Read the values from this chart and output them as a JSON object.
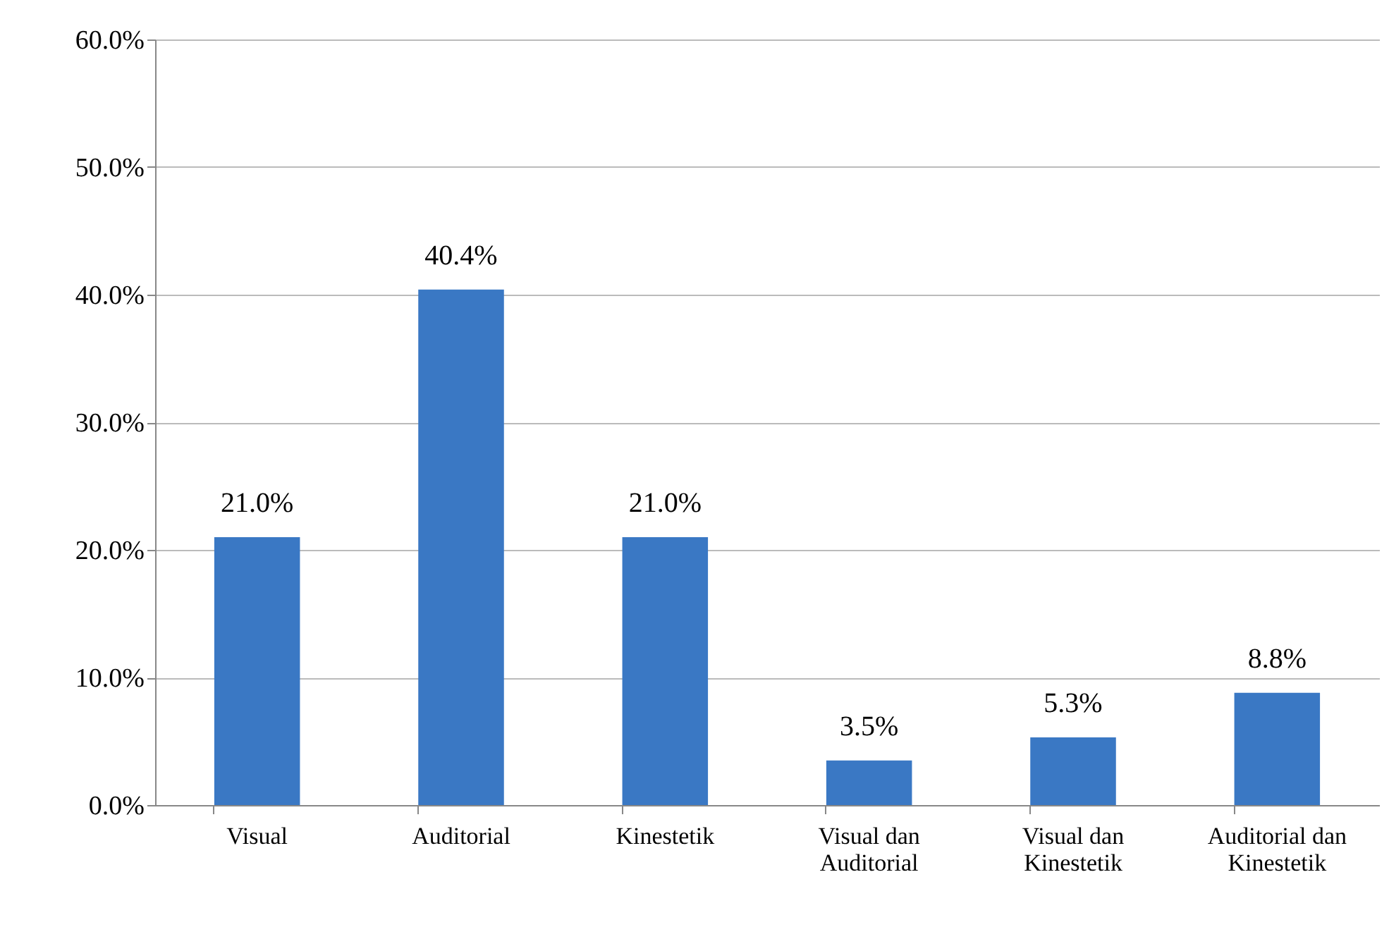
{
  "chart_data": {
    "type": "bar",
    "categories": [
      "Visual",
      "Auditorial",
      "Kinestetik",
      "Visual dan Auditorial",
      "Visual dan Kinestetik",
      "Auditorial dan Kinestetik"
    ],
    "values": [
      21.0,
      40.4,
      21.0,
      3.5,
      5.3,
      8.8
    ],
    "value_labels": [
      "21.0%",
      "40.4%",
      "21.0%",
      "3.5%",
      "5.3%",
      "8.8%"
    ],
    "color": "#3a78c4",
    "ylim": [
      0,
      60
    ],
    "yticks": [
      {
        "value": 0,
        "label": "0.0%"
      },
      {
        "value": 10,
        "label": "10.0%"
      },
      {
        "value": 20,
        "label": "20.0%"
      },
      {
        "value": 30,
        "label": "30.0%"
      },
      {
        "value": 40,
        "label": "40.0%"
      },
      {
        "value": 50,
        "label": "50.0%"
      },
      {
        "value": 60,
        "label": "60.0%"
      }
    ],
    "grid": "y"
  }
}
